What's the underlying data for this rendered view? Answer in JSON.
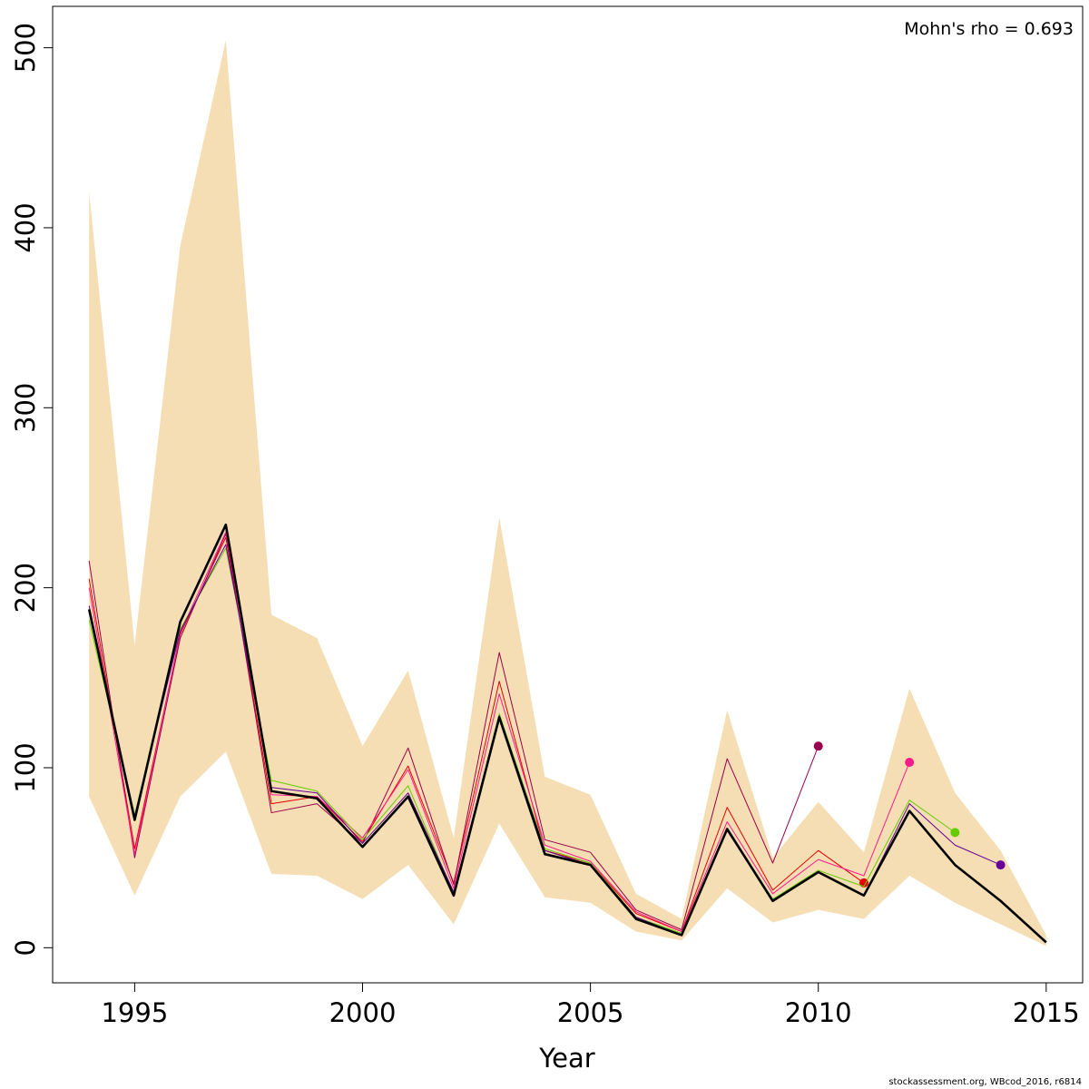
{
  "chart_data": {
    "type": "line",
    "xlabel": "Year",
    "ylabel": "",
    "xlim": [
      1993.2,
      2015.8
    ],
    "ylim": [
      -19.5,
      523
    ],
    "x_ticks": [
      1995,
      2000,
      2005,
      2010,
      2015
    ],
    "y_ticks": [
      0,
      100,
      200,
      300,
      400,
      500
    ],
    "annotation": "Mohn's rho = 0.693",
    "grid": false,
    "legend": "none",
    "band": {
      "color": "#F5DEB3",
      "x": [
        1994,
        1995,
        1996,
        1997,
        1998,
        1999,
        2000,
        2001,
        2002,
        2003,
        2004,
        2005,
        2006,
        2007,
        2008,
        2009,
        2010,
        2011,
        2012,
        2013,
        2014,
        2015
      ],
      "lower": [
        84,
        29,
        84,
        109,
        41,
        40,
        27,
        46,
        13,
        69,
        28,
        25,
        9,
        4,
        33,
        14,
        21,
        16,
        40,
        25,
        13,
        1
      ],
      "upper": [
        420,
        168,
        390,
        504,
        185,
        172,
        112,
        154,
        61,
        239,
        95,
        85,
        30,
        16,
        132,
        50,
        81,
        53,
        144,
        86,
        54,
        7
      ]
    },
    "series": [
      {
        "color": "#E60000",
        "values": [
          205,
          55,
          174,
          228,
          80,
          84,
          59,
          101,
          36,
          148,
          54,
          47,
          19,
          9,
          78,
          32,
          54,
          36
        ]
      },
      {
        "color": "#99004D",
        "values": [
          215,
          50,
          172,
          230,
          75,
          80,
          58,
          111,
          35,
          164,
          60,
          53,
          21,
          10,
          105,
          47,
          112
        ]
      },
      {
        "color": "#FF1A8C",
        "values": [
          200,
          52,
          175,
          231,
          85,
          84,
          61,
          99,
          33,
          141,
          57,
          48,
          20,
          9,
          70,
          30,
          49,
          40,
          103
        ]
      },
      {
        "color": "#66CC00",
        "values": [
          182,
          74,
          177,
          222,
          93,
          87,
          60,
          90,
          30,
          130,
          55,
          47,
          17,
          8,
          66,
          27,
          43,
          34,
          82,
          64
        ]
      },
      {
        "color": "#660099",
        "values": [
          190,
          73,
          176,
          224,
          89,
          86,
          58,
          86,
          31,
          129,
          54,
          46,
          17,
          7,
          65,
          26,
          42,
          29,
          80,
          57,
          46
        ]
      },
      {
        "color": "#000000",
        "values": [
          188,
          71,
          181,
          235,
          87,
          83,
          56,
          84,
          29,
          128,
          52,
          46,
          16,
          7,
          66,
          26,
          42,
          29,
          76,
          46,
          26,
          3
        ]
      }
    ],
    "x_start": 1994
  },
  "footer": "stockassessment.org, WBcod_2016, r6814"
}
